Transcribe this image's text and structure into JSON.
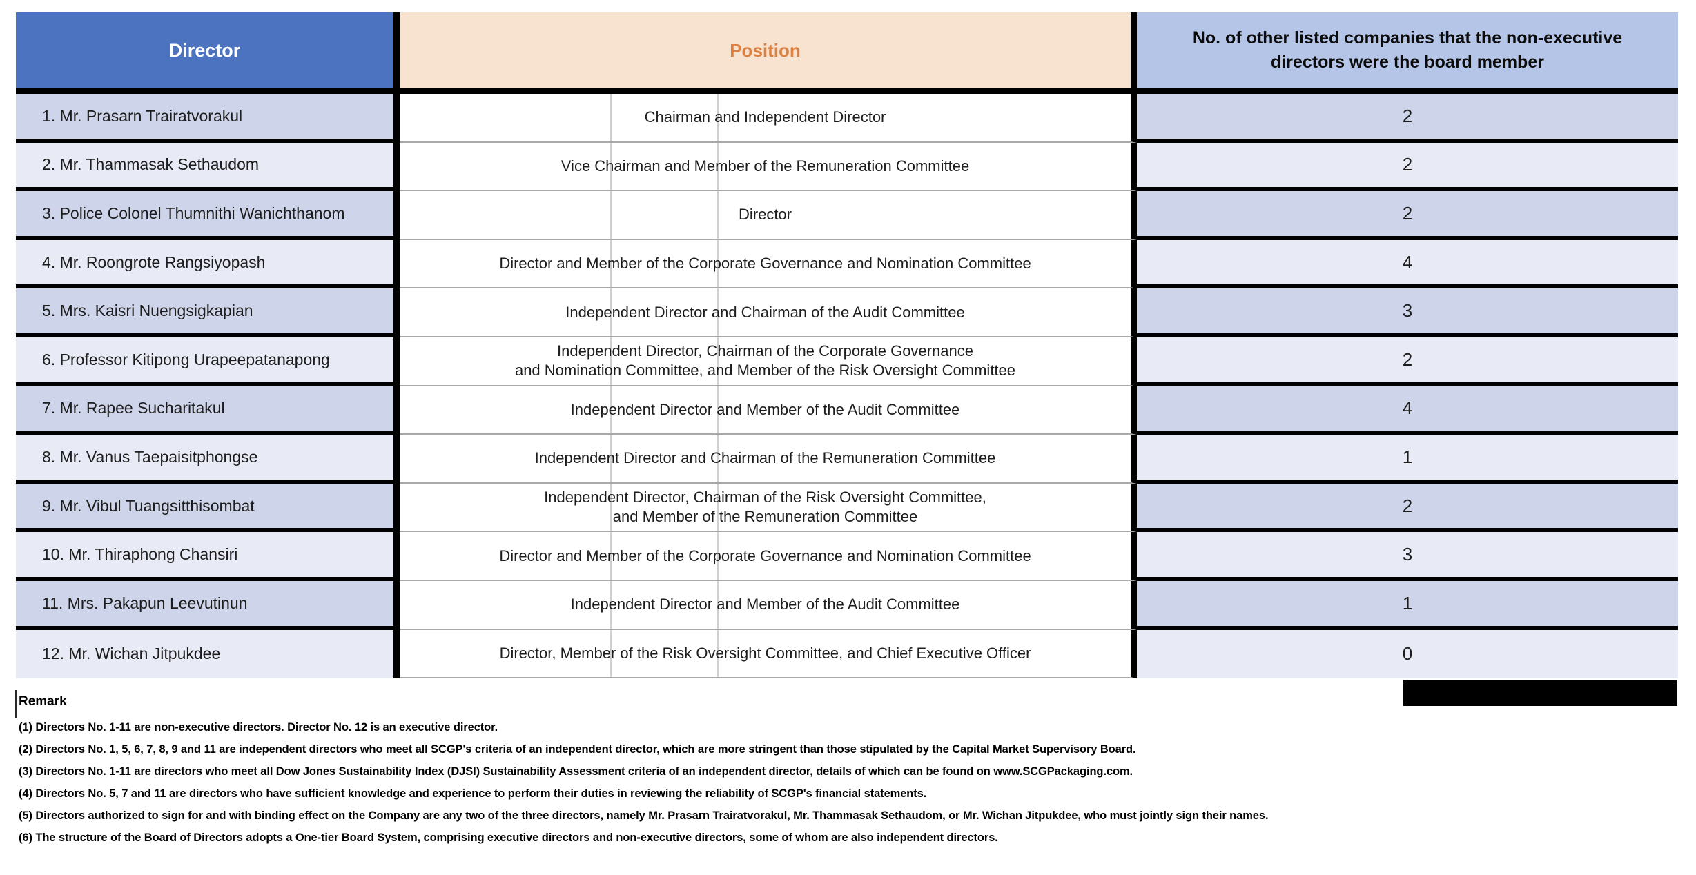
{
  "table": {
    "headers": {
      "director": "Director",
      "position": "Position",
      "companies": "No. of other listed companies that the non-executive\ndirectors were the board member"
    },
    "rows": [
      {
        "director": "1. Mr. Prasarn Trairatvorakul",
        "position": "Chairman and Independent Director",
        "count": "2"
      },
      {
        "director": "2. Mr. Thammasak Sethaudom",
        "position": "Vice Chairman and Member of the Remuneration Committee",
        "count": "2"
      },
      {
        "director": "3. Police Colonel Thumnithi Wanichthanom",
        "position": "Director",
        "count": "2"
      },
      {
        "director": "4. Mr. Roongrote Rangsiyopash",
        "position": "Director and Member of the Corporate Governance and Nomination Committee",
        "count": "4"
      },
      {
        "director": "5. Mrs. Kaisri Nuengsigkapian",
        "position": "Independent Director and Chairman of the Audit Committee",
        "count": "3"
      },
      {
        "director": "6. Professor Kitipong Urapeepatanapong",
        "position": "Independent Director, Chairman of the Corporate Governance\nand Nomination Committee, and Member of the Risk Oversight Committee",
        "count": "2"
      },
      {
        "director": "7. Mr. Rapee Sucharitakul",
        "position": "Independent Director and Member of the Audit Committee",
        "count": "4"
      },
      {
        "director": "8. Mr. Vanus Taepaisitphongse",
        "position": "Independent Director and Chairman of the Remuneration Committee",
        "count": "1"
      },
      {
        "director": "9. Mr. Vibul Tuangsitthisombat",
        "position": "Independent Director, Chairman of the Risk Oversight Committee,\nand Member of the Remuneration Committee",
        "count": "2"
      },
      {
        "director": "10. Mr. Thiraphong Chansiri",
        "position": "Director and Member of the Corporate Governance and Nomination Committee",
        "count": "3"
      },
      {
        "director": "11. Mrs. Pakapun Leevutinun",
        "position": "Independent Director and Member of the Audit Committee",
        "count": "1"
      },
      {
        "director": "12. Mr. Wichan Jitpukdee",
        "position": "Director, Member of the Risk Oversight Committee, and Chief Executive Officer",
        "count": "0"
      }
    ]
  },
  "remark": {
    "title": "Remark",
    "notes": [
      "(1) Directors No. 1-11 are non-executive directors. Director No. 12 is an executive director.",
      "(2) Directors No. 1, 5, 6, 7, 8, 9 and 11 are independent directors who meet all SCGP's criteria of an independent director, which are more stringent than those stipulated by the Capital Market Supervisory Board.",
      "(3) Directors No. 1-11 are directors who meet all Dow Jones Sustainability Index (DJSI) Sustainability Assessment criteria of an independent director, details of which can be found on www.SCGPackaging.com.",
      "(4) Directors No. 5, 7 and 11 are directors who have sufficient knowledge and experience to perform their duties in reviewing the reliability of SCGP's financial statements.",
      "(5) Directors authorized to sign for and with binding effect on the Company are any two of the three directors, namely Mr. Prasarn Trairatvorakul, Mr. Thammasak Sethaudom, or Mr. Wichan Jitpukdee, who must jointly sign their names.",
      "(6) The structure of the Board of Directors adopts a One-tier Board System, comprising executive directors and non-executive directors, some of whom are also independent directors."
    ]
  },
  "colors": {
    "header_blue": "#4C73BF",
    "header_peach": "#F8E3D0",
    "header_light_blue": "#B5C5E7",
    "row_dark": "#CED4E9",
    "row_light": "#E8EBF6",
    "position_accent": "#DC8144",
    "grid_black": "#000000",
    "grid_gray": "#A9A9A9"
  }
}
